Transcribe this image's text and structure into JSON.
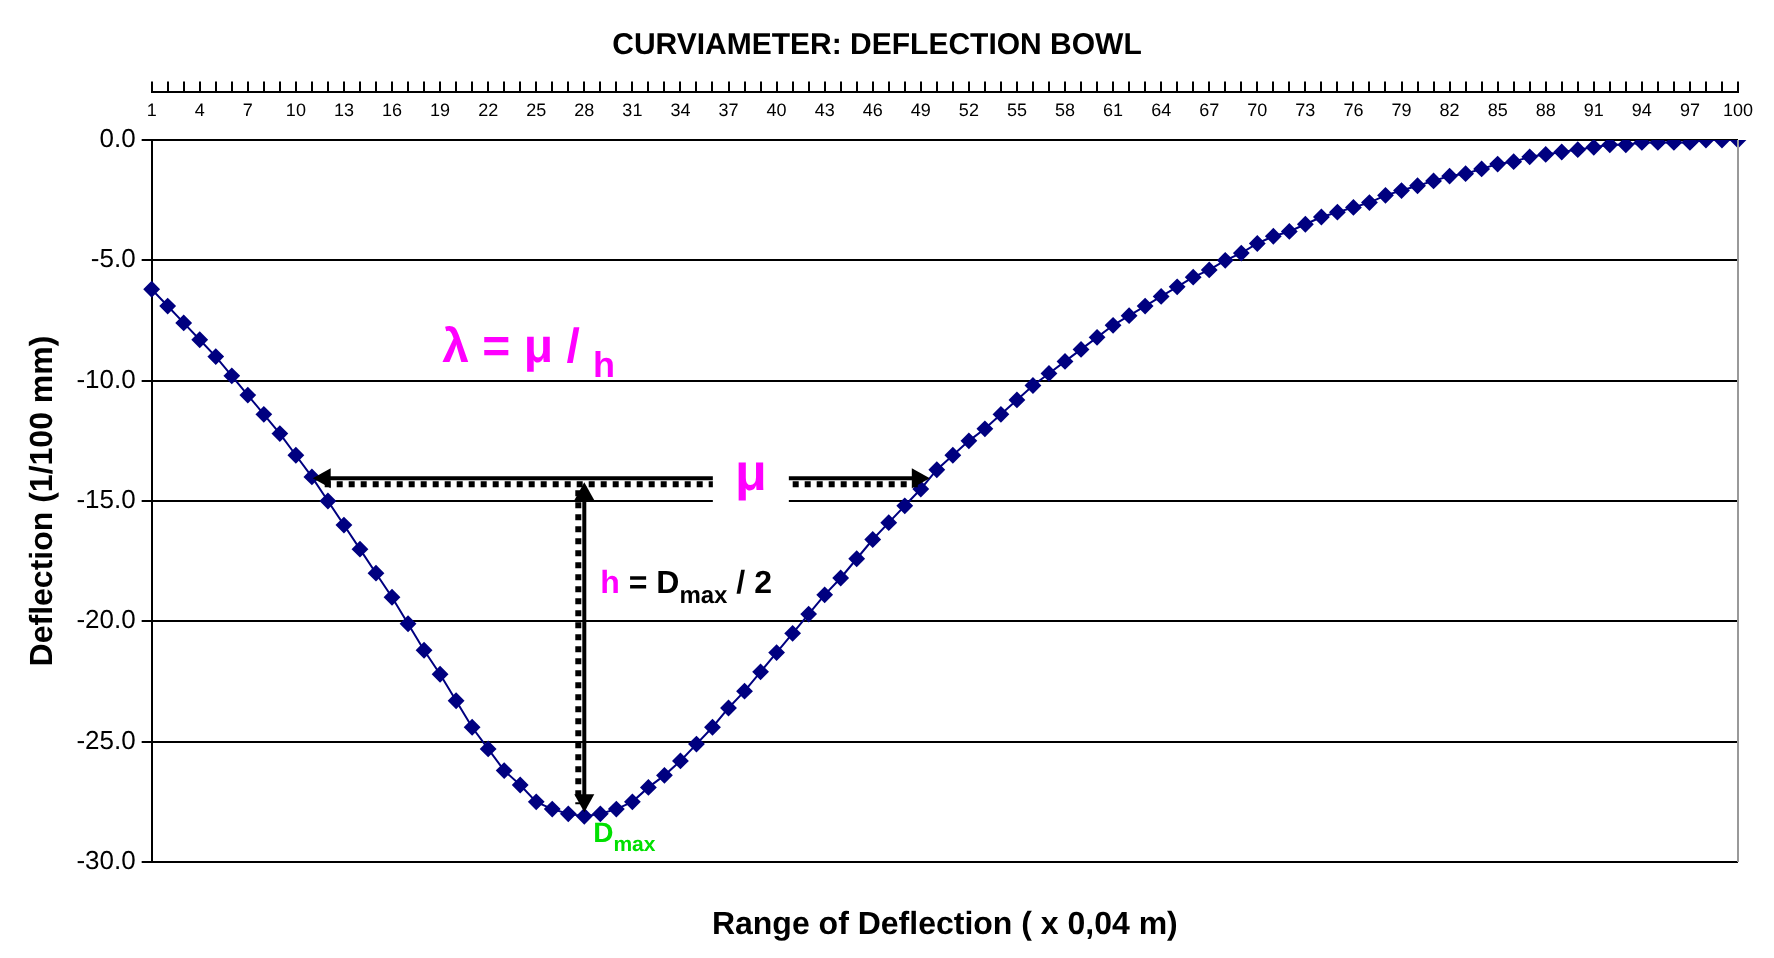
{
  "chart_data": {
    "type": "line",
    "title": "CURVIAMETER: DEFLECTION BOWL",
    "xlabel": "Range of Deflection ( x 0,04 m)",
    "ylabel": "Deflection (1/100 mm)",
    "categories": [
      "1",
      null,
      null,
      "4",
      null,
      null,
      "7",
      null,
      null,
      "10",
      null,
      null,
      "13",
      null,
      null,
      "16",
      null,
      null,
      "19",
      null,
      null,
      "22",
      null,
      null,
      "25",
      null,
      null,
      "28",
      null,
      null,
      "31",
      null,
      null,
      "34",
      null,
      null,
      "37",
      null,
      null,
      "40",
      null,
      null,
      "43",
      null,
      null,
      "46",
      null,
      null,
      "49",
      null,
      null,
      "52",
      null,
      null,
      "55",
      null,
      null,
      "58",
      null,
      null,
      "61",
      null,
      null,
      "64",
      null,
      null,
      "67",
      null,
      null,
      "70",
      null,
      null,
      "73",
      null,
      null,
      "76",
      null,
      null,
      "79",
      null,
      null,
      "82",
      null,
      null,
      "85",
      null,
      null,
      "88",
      null,
      null,
      "91",
      null,
      null,
      "94",
      null,
      null,
      "97",
      null,
      null,
      "100"
    ],
    "series": [
      {
        "color": "#000080",
        "values": [
          -6.2,
          -6.9,
          -7.6,
          -8.3,
          -9.0,
          -9.8,
          -10.6,
          -11.4,
          -12.2,
          -13.1,
          -14.0,
          -15.0,
          -16.0,
          -17.0,
          -18.0,
          -19.0,
          -20.1,
          -21.2,
          -22.2,
          -23.3,
          -24.4,
          -25.3,
          -26.2,
          -26.8,
          -27.5,
          -27.8,
          -28.0,
          -28.1,
          -28.0,
          -27.8,
          -27.5,
          -26.9,
          -26.4,
          -25.8,
          -25.1,
          -24.4,
          -23.6,
          -22.9,
          -22.1,
          -21.3,
          -20.5,
          -19.7,
          -18.9,
          -18.2,
          -17.4,
          -16.6,
          -15.9,
          -15.2,
          -14.5,
          -13.7,
          -13.1,
          -12.5,
          -12.0,
          -11.4,
          -10.8,
          -10.2,
          -9.7,
          -9.2,
          -8.7,
          -8.2,
          -7.7,
          -7.3,
          -6.9,
          -6.5,
          -6.1,
          -5.7,
          -5.4,
          -5.0,
          -4.7,
          -4.3,
          -4.0,
          -3.8,
          -3.5,
          -3.2,
          -3.0,
          -2.8,
          -2.6,
          -2.3,
          -2.1,
          -1.9,
          -1.7,
          -1.5,
          -1.4,
          -1.2,
          -1.0,
          -0.9,
          -0.7,
          -0.6,
          -0.5,
          -0.4,
          -0.3,
          -0.2,
          -0.2,
          -0.1,
          -0.1,
          -0.1,
          -0.1,
          0,
          0,
          0
        ]
      }
    ],
    "ylim": [
      -30,
      0
    ],
    "yticks": [
      {
        "value": -30,
        "label": "-30.0"
      },
      {
        "value": -25,
        "label": "-25.0"
      },
      {
        "value": -20,
        "label": "-20.0"
      },
      {
        "value": -15,
        "label": "-15.0"
      },
      {
        "value": -10,
        "label": "-10.0"
      },
      {
        "value": -5,
        "label": "-5.0"
      },
      {
        "value": 0,
        "label": "0.0"
      }
    ],
    "grid": "y",
    "legend": false,
    "marker": "diamond",
    "line_style": "solid",
    "annotations": [
      "λ = μ / $_{h}$",
      "μ",
      "h = D$_{max}$ / 2",
      {
        "text": "D$_{max}$",
        "x": "28",
        "y": -28.1
      }
    ]
  }
}
